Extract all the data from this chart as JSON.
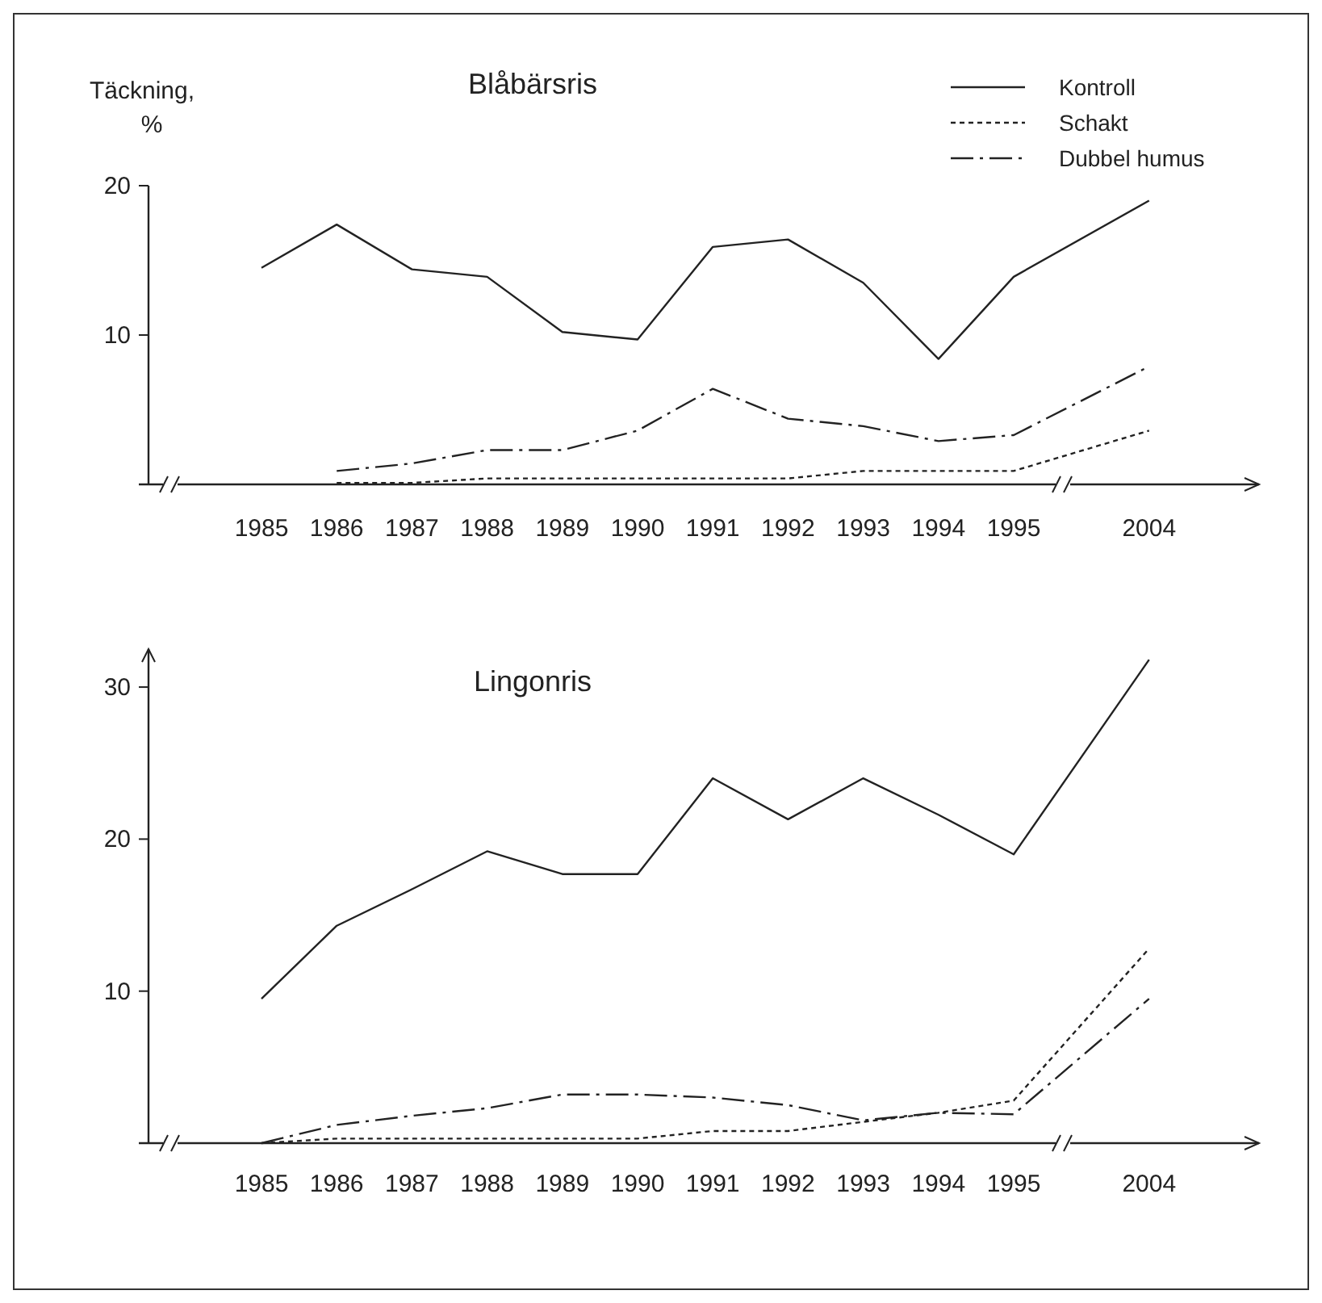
{
  "chart_data": [
    {
      "type": "line",
      "title": "Blåbärsris",
      "ylabel": "Täckning, %",
      "categories": [
        "1985",
        "1986",
        "1987",
        "1988",
        "1989",
        "1990",
        "1991",
        "1992",
        "1993",
        "1994",
        "1995",
        "2004"
      ],
      "ylim": [
        0,
        20
      ],
      "yticks": [
        10,
        20
      ],
      "legend": "top right",
      "series": [
        {
          "name": "Kontroll",
          "color": "#222222",
          "line_style": "solid",
          "values": [
            14.5,
            17.4,
            14.4,
            13.9,
            10.2,
            9.7,
            15.9,
            16.4,
            13.5,
            8.4,
            13.9,
            19.0
          ]
        },
        {
          "name": "Schakt",
          "color": "#222222",
          "line_style": "dotted",
          "values": [
            null,
            0.1,
            0.1,
            0.4,
            0.4,
            0.4,
            0.4,
            0.4,
            0.9,
            0.9,
            0.9,
            3.6
          ]
        },
        {
          "name": "Dubbel humus",
          "color": "#222222",
          "line_style": "dashed",
          "values": [
            null,
            0.9,
            1.4,
            2.3,
            2.3,
            3.6,
            6.4,
            4.4,
            3.9,
            2.9,
            3.3,
            7.9
          ]
        }
      ]
    },
    {
      "type": "line",
      "title": "Lingonris",
      "categories": [
        "1985",
        "1986",
        "1987",
        "1988",
        "1989",
        "1990",
        "1991",
        "1992",
        "1993",
        "1994",
        "1995",
        "2004"
      ],
      "ylim": [
        0,
        32.5
      ],
      "yticks": [
        10,
        20,
        30
      ],
      "series": [
        {
          "color": "#222222",
          "line_style": "solid",
          "values": [
            9.5,
            14.3,
            16.7,
            19.2,
            17.7,
            17.7,
            24.0,
            21.3,
            24.0,
            21.6,
            19.0,
            31.8
          ]
        },
        {
          "color": "#222222",
          "line_style": "dotted",
          "values": [
            0,
            0.3,
            0.3,
            0.3,
            0.3,
            0.3,
            0.8,
            0.8,
            1.4,
            2.0,
            2.8,
            12.8
          ]
        },
        {
          "color": "#222222",
          "line_style": "dashed",
          "values": [
            0,
            1.2,
            1.8,
            2.3,
            3.2,
            3.2,
            3.0,
            2.5,
            1.5,
            2.0,
            1.9,
            9.5
          ]
        }
      ]
    }
  ]
}
